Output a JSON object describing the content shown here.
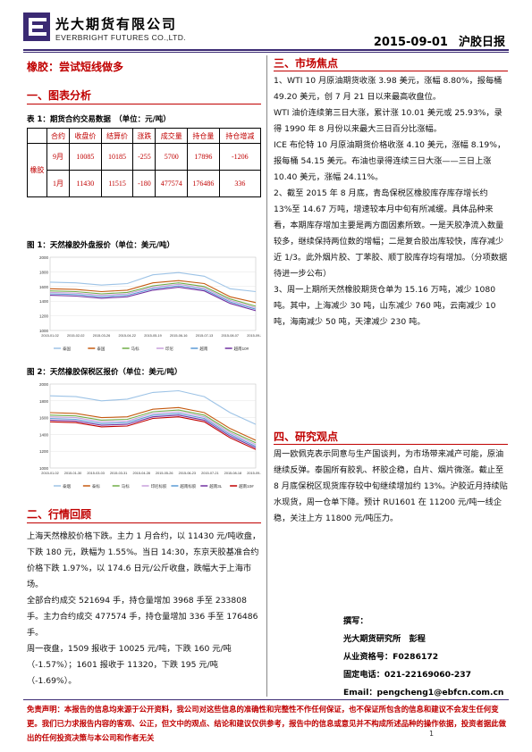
{
  "header": {
    "company_cn": "光大期货有限公司",
    "company_en": "EVERBRIGHT FUTURES CO.,LTD.",
    "date": "2015-09-01",
    "report_type": "沪胶日报"
  },
  "title": "橡胶：尝试短线做多",
  "sections": {
    "s1": "一、图表分析",
    "s2": "二、行情回顾",
    "s3": "三、市场焦点",
    "s4": "四、研究观点"
  },
  "table": {
    "caption": "表 1：期货合约交易数据　（单位：元/吨）",
    "headers": [
      "合约",
      "收盘价",
      "结算价",
      "涨跌",
      "成交量",
      "持仓量",
      "持仓增减"
    ],
    "row_label": "橡胶",
    "rows": [
      [
        "9月",
        "10085",
        "10185",
        "-255",
        "5700",
        "17896",
        "-1206"
      ],
      [
        "1月",
        "11430",
        "11515",
        "-180",
        "477574",
        "176486",
        "336"
      ]
    ]
  },
  "fig1": {
    "caption": "图 1：天然橡胶外盘报价（单位：美元/吨）"
  },
  "fig2": {
    "caption": "图 2：天然橡胶保税区报价（单位：美元/吨）"
  },
  "chart_data": [
    {
      "type": "line",
      "yticks": [
        "2000",
        "1800",
        "1600",
        "1400",
        "1200",
        "1000"
      ],
      "ylim": [
        1000,
        2000
      ],
      "x": [
        "2015-01-02",
        "2015-02-02",
        "2015-03-02",
        "2015-04-02",
        "2015-05-02",
        "2015-06-02",
        "2015-07-02",
        "2015-08-02",
        "2015-08-31"
      ],
      "xticks": [
        "2015-01-02",
        "2015-02-02",
        "2015-03-26",
        "2015-04-22",
        "2015-05-19",
        "2015-06-16",
        "2015-07-13",
        "2015-08-07",
        "2015-09-28"
      ],
      "legend_position": "bottom",
      "series": [
        {
          "name": "泰国",
          "color": "#9dc3e6",
          "values": [
            1660,
            1650,
            1620,
            1640,
            1760,
            1790,
            1740,
            1570,
            1530
          ]
        },
        {
          "name": "泰国",
          "color": "#c55a11",
          "values": [
            1570,
            1560,
            1530,
            1550,
            1650,
            1680,
            1640,
            1460,
            1380
          ]
        },
        {
          "name": "马标",
          "color": "#70ad47",
          "values": [
            1540,
            1530,
            1500,
            1520,
            1610,
            1650,
            1600,
            1430,
            1330
          ]
        },
        {
          "name": "印尼",
          "color": "#c9a0dc",
          "values": [
            1520,
            1510,
            1480,
            1500,
            1590,
            1630,
            1580,
            1410,
            1310
          ]
        },
        {
          "name": "越南",
          "color": "#5b9bd5",
          "values": [
            1500,
            1490,
            1460,
            1480,
            1570,
            1610,
            1560,
            1390,
            1290
          ]
        },
        {
          "name": "越南10#",
          "color": "#7030a0",
          "values": [
            1480,
            1470,
            1440,
            1460,
            1550,
            1590,
            1540,
            1370,
            1270
          ]
        }
      ]
    },
    {
      "type": "line",
      "yticks": [
        "2000",
        "1800",
        "1600",
        "1400",
        "1200",
        "1000"
      ],
      "ylim": [
        1000,
        2000
      ],
      "x": [
        "2015-01-02",
        "2015-02-02",
        "2015-03-02",
        "2015-04-02",
        "2015-05-02",
        "2015-06-02",
        "2015-07-02",
        "2015-08-02",
        "2015-08-31"
      ],
      "xticks": [
        "2015-01-02",
        "2015-01-30",
        "2015-03-03",
        "2015-03-31",
        "2015-04-28",
        "2015-05-26",
        "2015-06-23",
        "2015-07-21",
        "2015-08-18",
        "2015-09-15"
      ],
      "legend_position": "bottom",
      "series": [
        {
          "name": "泰烟",
          "color": "#9dc3e6",
          "values": [
            1860,
            1850,
            1800,
            1820,
            1900,
            1920,
            1850,
            1660,
            1520
          ]
        },
        {
          "name": "泰标",
          "color": "#c55a11",
          "values": [
            1660,
            1650,
            1600,
            1610,
            1700,
            1720,
            1660,
            1470,
            1330
          ]
        },
        {
          "name": "马标",
          "color": "#70ad47",
          "values": [
            1630,
            1620,
            1570,
            1580,
            1670,
            1690,
            1630,
            1440,
            1300
          ]
        },
        {
          "name": "印尼标胶",
          "color": "#c9a0dc",
          "values": [
            1610,
            1600,
            1550,
            1560,
            1650,
            1670,
            1610,
            1420,
            1280
          ]
        },
        {
          "name": "越南标胶",
          "color": "#5b9bd5",
          "values": [
            1590,
            1580,
            1530,
            1540,
            1630,
            1650,
            1590,
            1400,
            1260
          ]
        },
        {
          "name": "越南3L",
          "color": "#7030a0",
          "values": [
            1570,
            1560,
            1510,
            1520,
            1610,
            1630,
            1570,
            1380,
            1240
          ]
        },
        {
          "name": "越南10#",
          "color": "#c00000",
          "values": [
            1550,
            1540,
            1490,
            1500,
            1590,
            1610,
            1550,
            1360,
            1220
          ]
        }
      ]
    }
  ],
  "review": {
    "p1": "上海天然橡胶价格下跌。主力 1 月合约，以 11430 元/吨收盘，下跌 180 元，跌幅为 1.55%。当日 14:30，东京天胶基准合约价格下跌 1.97%，以 174.6 日元/公斤收盘，跌幅大于上海市场。",
    "p2": "全部合约成交 521694 手，持仓量增加 3968 手至 233808 手。主力合约成交 477574 手，持仓量增加 336 手至 176486 手。",
    "p3": "周一夜盘，1509 报收于 10025 元/吨，下跌 160 元/吨（-1.57%）；1601 报收于 11320，下跌 195 元/吨（-1.69%）。"
  },
  "focus": {
    "p1": "1、WTI 10 月原油期货收涨 3.98 美元，涨幅 8.80%，报每桶 49.20 美元，创 7 月 21 日以来最高收盘位。",
    "p2": "WTI 油价连续第三日大涨，累计涨 10.01 美元或 25.93%，录得 1990 年 8 月份以来最大三日百分比涨幅。",
    "p3": "ICE 布伦特 10 月原油期货价格收涨 4.10 美元，涨幅 8.19%，报每桶 54.15 美元。布油也录得连续三日大涨——三日上涨 10.40 美元，涨幅 24.11%。",
    "p4": "2、截至 2015 年 8 月底，青岛保税区橡胶库存库存增长约 13%至 14.67 万吨，增速较本月中旬有所减缓。具体品种来看，本期库存增加主要是两方面因素所致。一是天胶净流入数量较多，继续保持两位数的增幅；二是复合胶出库较快，库存减少近 1/3。此外烟片胶、丁苯胶、顺丁胶库存均有增加。（分项数据待进一步公布）",
    "p5": "3、周一上期所天然橡胶期货仓单为 15.16 万吨，减少 1080 吨。其中，上海减少 30 吨，山东减少 760 吨，云南减少 10 吨，海南减少 50 吨，天津减少 230 吨。"
  },
  "view": {
    "p1": "周一欧佩克表示同意与生产国谈判，为市场带来减产可能，原油继续反弹。泰国所有胶乳、杯胶企稳，白片、烟片微涨。截止至 8 月底保税区现货库存较中旬继续增加约 13%。沪胶近月持续贴水现货，周一仓单下降。预计 RU1601 在 11200 元/吨一线企稳，关注上方 11800 元/吨压力。"
  },
  "author": {
    "l1": "撰写：",
    "l2": "光大期货研究所　彭程",
    "l3": "从业资格号：F0286172",
    "l4": "固定电话：021-22169060-237",
    "l5": "Email：pengcheng1@ebfcn.com.cn"
  },
  "disclaimer": "免责声明：本报告的信息均来源于公开资料，我公司对这些信息的准确性和完整性不作任何保证，也不保证所包含的信息和建议不会发生任何变更。我们已力求报告内容的客观、公正，但文中的观点、结论和建议仅供参考，报告中的信息或意见并不构成所述品种的操作依据，投资者据此做出的任何投资决策与本公司和作者无关",
  "page_number": "1"
}
